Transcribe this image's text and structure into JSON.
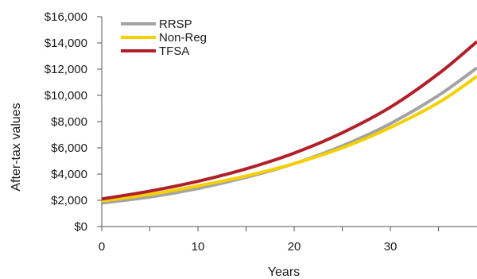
{
  "chart_data": {
    "type": "line",
    "xlabel": "Years",
    "ylabel": "After-tax values",
    "xlim": [
      0,
      39
    ],
    "ylim": [
      0,
      16000
    ],
    "x_ticks": [
      0,
      10,
      20,
      30
    ],
    "y_ticks": [
      0,
      2000,
      4000,
      6000,
      8000,
      10000,
      12000,
      14000,
      16000
    ],
    "y_tick_labels": [
      "$0",
      "$2,000",
      "$4,000",
      "$6,000",
      "$8,000",
      "$10,000",
      "$12,000",
      "$14,000",
      "$16,000"
    ],
    "legend_position": "top-left",
    "grid": false,
    "x": [
      0,
      5,
      10,
      15,
      20,
      25,
      30,
      35,
      39
    ],
    "series": [
      {
        "name": "RRSP",
        "color": "#a3a3a3",
        "values": [
          1800,
          2250,
          2900,
          3750,
          4800,
          6150,
          7850,
          10000,
          12100
        ]
      },
      {
        "name": "Non-Reg",
        "color": "#f5d000",
        "values": [
          1950,
          2450,
          3100,
          3850,
          4800,
          6000,
          7550,
          9450,
          11450
        ]
      },
      {
        "name": "TFSA",
        "color": "#b0202a",
        "values": [
          2100,
          2700,
          3450,
          4400,
          5600,
          7150,
          9100,
          11650,
          14100
        ]
      }
    ]
  }
}
